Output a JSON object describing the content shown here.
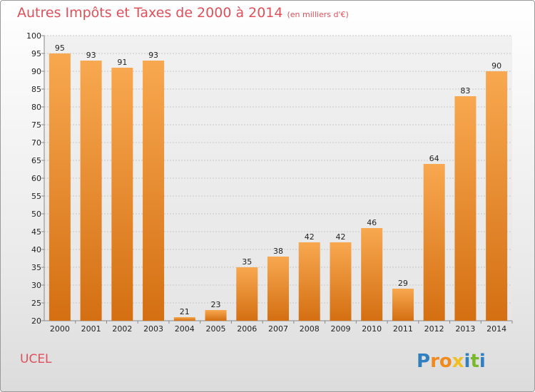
{
  "header": {
    "title": "Autres Impôts et Taxes de 2000 à 2014",
    "subtitle": "(en milliers d'€)"
  },
  "footer": {
    "commune": "UCEL",
    "logo": {
      "letters": [
        "P",
        "r",
        "o",
        "x",
        "i",
        "t",
        "i"
      ],
      "colors": [
        "#2f7fc1",
        "#f08a1c",
        "#f08a1c",
        "#f0c020",
        "#2f7fc1",
        "#78b82a",
        "#2f7fc1"
      ]
    }
  },
  "colors": {
    "bar_light": "#f8a850",
    "bar_dark": "#d46f12",
    "grid": "#c8c8c8",
    "title": "#e0505a"
  },
  "chart_data": {
    "type": "bar",
    "title": "Autres Impôts et Taxes de 2000 à 2014",
    "subtitle": "(en milliers d'€)",
    "categories": [
      "2000",
      "2001",
      "2002",
      "2003",
      "2004",
      "2005",
      "2006",
      "2007",
      "2008",
      "2009",
      "2010",
      "2011",
      "2012",
      "2013",
      "2014"
    ],
    "values": [
      95,
      93,
      91,
      93,
      21,
      23,
      35,
      38,
      42,
      42,
      46,
      29,
      64,
      83,
      90
    ],
    "ylim": [
      20,
      100
    ],
    "yticks": [
      20,
      25,
      30,
      35,
      40,
      45,
      50,
      55,
      60,
      65,
      70,
      75,
      80,
      85,
      90,
      95,
      100
    ],
    "grid": true,
    "xlabel": "",
    "ylabel": ""
  }
}
